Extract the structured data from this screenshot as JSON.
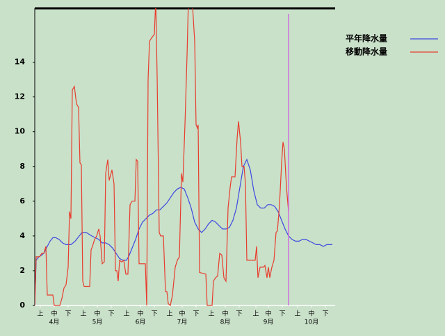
{
  "chart_data": {
    "type": "line",
    "xlim": [
      0,
      216
    ],
    "ylim": [
      0,
      17.1
    ],
    "yticks": [
      0,
      2,
      4,
      6,
      8,
      10,
      12,
      14
    ],
    "xticks": [
      {
        "value": 4,
        "label": "上"
      },
      {
        "value": 14,
        "label": "中"
      },
      {
        "value": 24,
        "label": "下"
      },
      {
        "value": 35,
        "label": "上"
      },
      {
        "value": 45,
        "label": "中"
      },
      {
        "value": 55,
        "label": "下"
      },
      {
        "value": 66,
        "label": "上"
      },
      {
        "value": 76,
        "label": "中"
      },
      {
        "value": 86,
        "label": "下"
      },
      {
        "value": 97,
        "label": "上"
      },
      {
        "value": 106,
        "label": "中"
      },
      {
        "value": 116,
        "label": "下"
      },
      {
        "value": 127,
        "label": "上"
      },
      {
        "value": 137,
        "label": "中"
      },
      {
        "value": 147,
        "label": "下"
      },
      {
        "value": 159,
        "label": "上"
      },
      {
        "value": 168,
        "label": "中"
      },
      {
        "value": 178,
        "label": "下"
      },
      {
        "value": 189,
        "label": "上"
      },
      {
        "value": 199,
        "label": "中"
      },
      {
        "value": 209,
        "label": "下"
      }
    ],
    "months": [
      {
        "value": 14,
        "label": "4月"
      },
      {
        "value": 45,
        "label": "5月"
      },
      {
        "value": 76,
        "label": "6月"
      },
      {
        "value": 106,
        "label": "7月"
      },
      {
        "value": 137,
        "label": "8月"
      },
      {
        "value": 168,
        "label": "9月"
      },
      {
        "value": 199,
        "label": "10月"
      }
    ],
    "current_x": 182.5,
    "current_color": "#d070e0",
    "series": [
      {
        "name": "平年降水量",
        "color": "#3c48e0",
        "x": [
          0,
          1,
          3,
          5,
          6.5,
          9,
          11,
          13,
          15,
          17.5,
          20,
          22.5,
          26,
          29,
          32,
          34,
          37,
          39,
          41,
          43.5,
          46,
          48.5,
          51,
          53.5,
          56,
          58.5,
          61,
          63.5,
          66,
          68,
          70,
          72.5,
          75,
          77.5,
          80,
          82.5,
          85,
          87.5,
          90,
          92.5,
          95,
          97.5,
          100,
          102.5,
          105,
          107.5,
          110,
          112.5,
          115,
          117.5,
          120,
          122.5,
          125,
          127.5,
          130,
          132.5,
          135,
          137.5,
          140,
          142.5,
          145,
          147.5,
          150,
          152.5,
          155,
          157.5,
          160,
          162.5,
          165,
          167.5,
          170,
          172.5,
          175,
          177.5,
          180,
          182.5,
          185,
          187.5,
          190,
          192.5,
          195,
          197.5,
          200,
          202.5,
          205,
          207.5,
          210,
          214
        ],
        "values": [
          0,
          2.6,
          2.8,
          2.9,
          3,
          3.4,
          3.7,
          3.9,
          3.9,
          3.8,
          3.6,
          3.5,
          3.5,
          3.7,
          4,
          4.2,
          4.2,
          4.1,
          4,
          3.9,
          3.8,
          3.6,
          3.6,
          3.5,
          3.3,
          3,
          2.7,
          2.6,
          2.6,
          2.9,
          3.3,
          3.8,
          4.4,
          4.8,
          5,
          5.2,
          5.3,
          5.5,
          5.5,
          5.7,
          5.9,
          6.2,
          6.5,
          6.7,
          6.8,
          6.7,
          6.2,
          5.6,
          4.8,
          4.4,
          4.2,
          4.4,
          4.7,
          4.9,
          4.8,
          4.6,
          4.4,
          4.4,
          4.5,
          4.9,
          5.6,
          6.8,
          8,
          8.4,
          7.8,
          6.6,
          5.8,
          5.6,
          5.6,
          5.8,
          5.8,
          5.7,
          5.4,
          4.9,
          4.4,
          4,
          3.8,
          3.7,
          3.7,
          3.8,
          3.8,
          3.7,
          3.6,
          3.5,
          3.5,
          3.4,
          3.5,
          3.5
        ]
      },
      {
        "name": "移動降水量",
        "color": "#e83c2c",
        "x": [
          0,
          1,
          3.5,
          5,
          6.5,
          8,
          9,
          13,
          14,
          18,
          19.5,
          21,
          22.5,
          24,
          25,
          26,
          27,
          28.5,
          30,
          31.5,
          32.5,
          33.5,
          34.5,
          35.5,
          39.5,
          40.5,
          41.5,
          43,
          44.5,
          46,
          47,
          48.5,
          50,
          51,
          52.5,
          53.5,
          55.5,
          57,
          58,
          59,
          60,
          61,
          62.5,
          64,
          65.5,
          67,
          68.5,
          70,
          72,
          73,
          74,
          75,
          79.5,
          80.5,
          81.5,
          82.5,
          84,
          86,
          87,
          88,
          89.5,
          90.5,
          92.5,
          94,
          95,
          96,
          97.5,
          99,
          101,
          102.5,
          104,
          105.5,
          106.5,
          108,
          109.5,
          110.5,
          112.5,
          113.5,
          115,
          116,
          117,
          117.5,
          118.5,
          123,
          124,
          127.5,
          128.5,
          130,
          131.5,
          133,
          134.5,
          136,
          137.5,
          139,
          140.5,
          141.5,
          144,
          145.5,
          146.5,
          148,
          149,
          150.5,
          151.5,
          152.5,
          158.5,
          159.5,
          160.5,
          162,
          164.5,
          165.5,
          167,
          168,
          169,
          170.5,
          172,
          173.5,
          174.5,
          176,
          177.5,
          178.5,
          179.5,
          181,
          182.5
        ],
        "values": [
          0,
          2.8,
          2.8,
          3,
          3,
          3.4,
          0.6,
          0.6,
          0,
          0,
          0.4,
          1,
          1.2,
          2.2,
          5.4,
          5,
          12.4,
          12.6,
          11.6,
          11.4,
          8.2,
          8.1,
          1.4,
          1.1,
          1.1,
          3.2,
          3.4,
          3.8,
          4,
          4.4,
          4,
          2.4,
          2.5,
          7.6,
          8.4,
          7.2,
          7.8,
          7,
          2,
          2,
          1.4,
          2.6,
          2.5,
          2.6,
          1.8,
          1.8,
          5.8,
          6,
          6,
          8.4,
          8.3,
          2.4,
          2.4,
          0,
          13,
          15.2,
          15.4,
          15.6,
          17.6,
          13.2,
          4.2,
          4,
          4,
          0.8,
          0.8,
          0.1,
          0,
          0.6,
          2.2,
          2.6,
          2.8,
          7.6,
          7.1,
          10.4,
          14.4,
          17.6,
          17.6,
          17.2,
          15.2,
          10.4,
          10.2,
          10.4,
          1.9,
          1.8,
          0,
          0,
          1.4,
          1.6,
          1.7,
          3,
          2.9,
          1.6,
          1.4,
          5.6,
          6.8,
          7.4,
          7.4,
          9.6,
          10.6,
          9.4,
          8,
          8,
          7,
          2.6,
          2.6,
          3.4,
          1.6,
          2.2,
          2.2,
          2.3,
          1.6,
          2.2,
          1.6,
          2.2,
          2.6,
          4.2,
          4.3,
          5.8,
          8.2,
          9.4,
          9,
          6.8,
          5.4
        ]
      }
    ]
  }
}
